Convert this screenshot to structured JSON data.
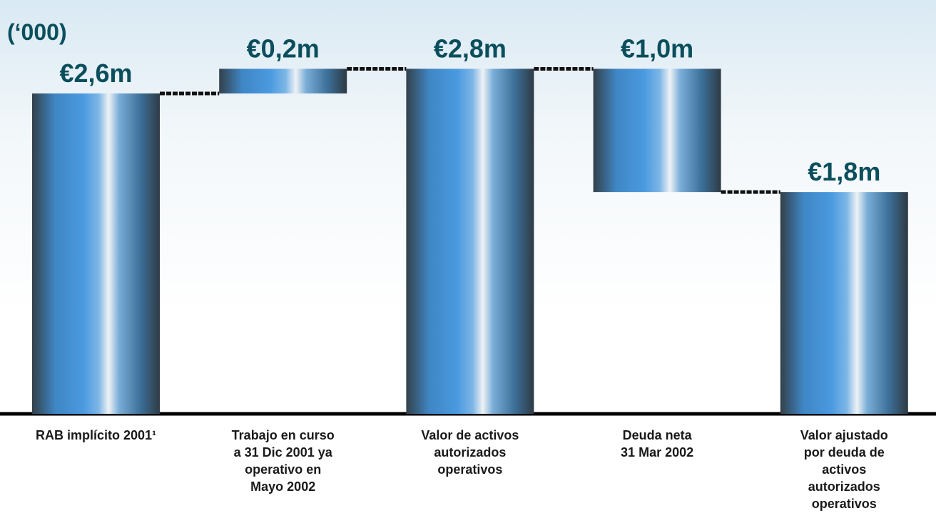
{
  "chart_data": {
    "type": "waterfall",
    "unit_label": "(‘000)",
    "categories": [
      [
        "RAB implícito 2001¹"
      ],
      [
        "Trabajo en curso",
        "a 31 Dic 2001 ya",
        "operativo en",
        "Mayo 2002"
      ],
      [
        "Valor de activos",
        "autorizados",
        "operativos"
      ],
      [
        "Deuda neta",
        "31 Mar 2002"
      ],
      [
        "Valor ajustado",
        "por deuda de",
        "activos",
        "autorizados",
        "operativos"
      ]
    ],
    "values": [
      2.6,
      0.2,
      2.8,
      -1.0,
      1.8
    ],
    "value_labels": [
      "€2,6m",
      "€0,2m",
      "€2,8m",
      "€1,0m",
      "€1,8m"
    ],
    "is_total": [
      true,
      false,
      true,
      false,
      true
    ],
    "ylim": [
      0,
      3
    ]
  }
}
